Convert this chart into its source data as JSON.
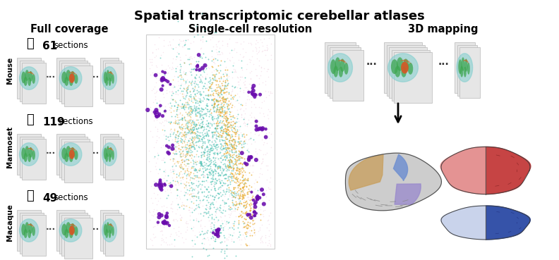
{
  "title": "Spatial transcriptomic cerebellar atlases",
  "col1_header": "Full coverage",
  "col2_header": "Single-cell resolution",
  "col3_header": "3D mapping",
  "species": [
    "Mouse",
    "Marmoset",
    "Macaque"
  ],
  "sections": [
    "61",
    "119",
    "49"
  ],
  "bg_color": "#ffffff",
  "title_fontsize": 13,
  "header_fontsize": 10.5,
  "species_label_fontsize": 8,
  "section_num_fontsize": 11
}
